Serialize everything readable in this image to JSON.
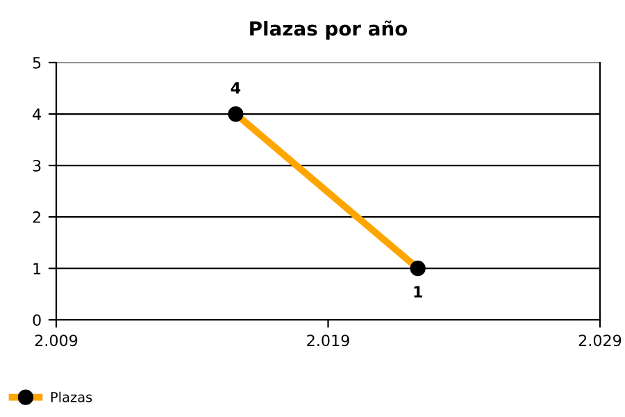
{
  "chart_data": {
    "type": "line",
    "title": "Plazas por año",
    "x": [
      2015.6,
      2022.3
    ],
    "series": [
      {
        "name": "Plazas",
        "color": "#ffa500",
        "values": [
          4,
          1
        ]
      }
    ],
    "xlim": [
      2009,
      2029
    ],
    "xticks": [
      {
        "value": 2009,
        "label": "2.009"
      },
      {
        "value": 2019,
        "label": "2.019"
      },
      {
        "value": 2029,
        "label": "2.029"
      }
    ],
    "ylim": [
      0,
      5
    ],
    "yticks": [
      0,
      1,
      2,
      3,
      4,
      5
    ],
    "grid": "y",
    "legend": "bottom left",
    "marker": "circle",
    "line_style": "solid",
    "data_labels": true
  }
}
